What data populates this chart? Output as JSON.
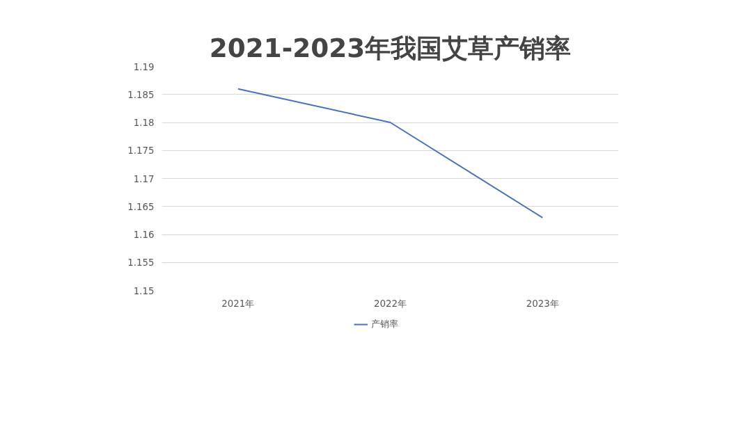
{
  "chart_data": {
    "type": "line",
    "title": "2021-2023年我国艾草产销率",
    "categories": [
      "2021年",
      "2022年",
      "2023年"
    ],
    "series": [
      {
        "name": "产销率",
        "color": "#4472c4",
        "values": [
          1.186,
          1.18,
          1.163
        ]
      }
    ],
    "ylim": [
      1.15,
      1.19
    ],
    "yticks": [
      1.15,
      1.155,
      1.16,
      1.165,
      1.17,
      1.175,
      1.18,
      1.185,
      1.19
    ],
    "grid": "y",
    "legend": "bottom",
    "marker": "none",
    "line_style": "solid"
  }
}
